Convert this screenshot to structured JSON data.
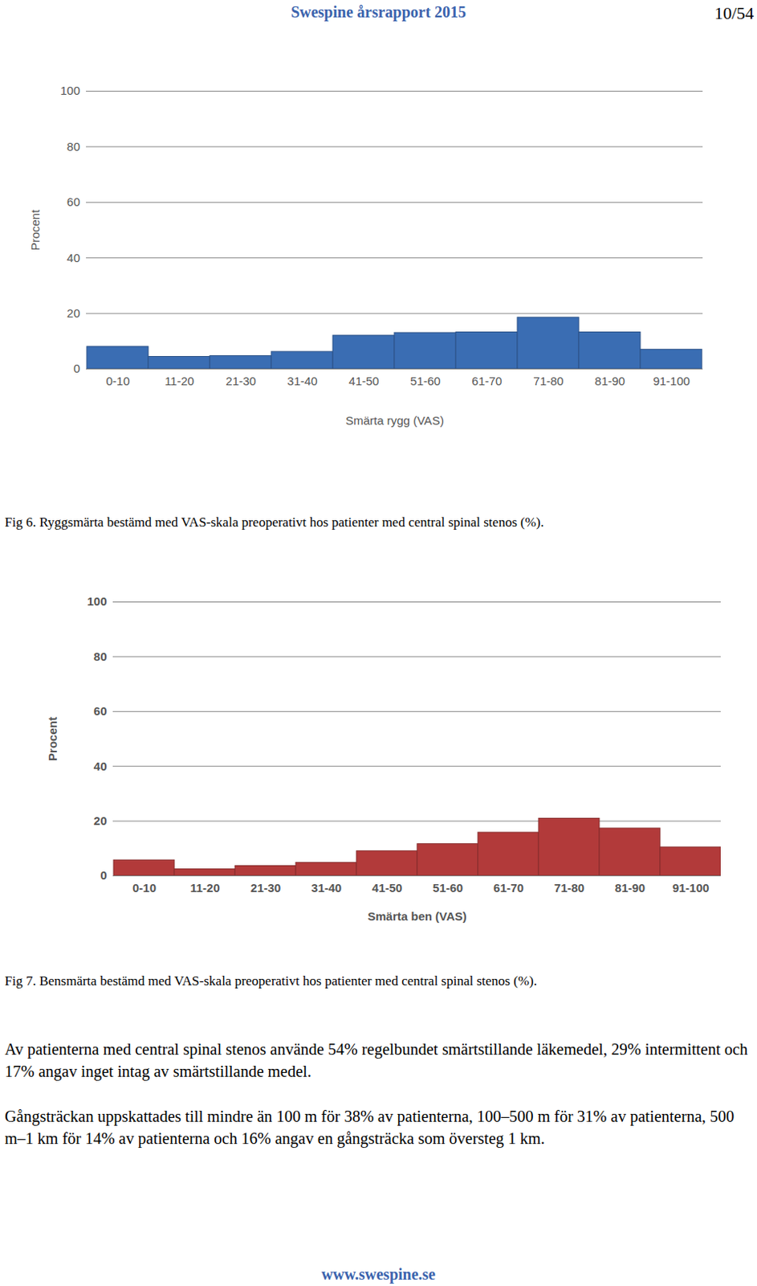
{
  "chart_data": [
    {
      "type": "bar",
      "xlabel": "Smärta rygg (VAS)",
      "ylabel": "Procent",
      "categories": [
        "0-10",
        "11-20",
        "21-30",
        "31-40",
        "41-50",
        "51-60",
        "61-70",
        "71-80",
        "81-90",
        "91-100"
      ],
      "values": [
        8,
        4.4,
        4.7,
        6.2,
        12,
        13,
        13.2,
        18.5,
        13.2,
        7
      ],
      "color": "#3a6db3",
      "ylim": [
        0,
        100
      ],
      "yticks": [
        0,
        20,
        40,
        60,
        80,
        100
      ],
      "grid": true
    },
    {
      "type": "bar",
      "xlabel": "Smärta ben (VAS)",
      "ylabel": "Procent",
      "categories": [
        "0-10",
        "11-20",
        "21-30",
        "31-40",
        "41-50",
        "51-60",
        "61-70",
        "71-80",
        "81-90",
        "91-100"
      ],
      "values": [
        5.7,
        2.4,
        3.6,
        4.8,
        9,
        11.6,
        15.8,
        20.9,
        17.3,
        10.4
      ],
      "color": "#b23a3a",
      "ylim": [
        0,
        100
      ],
      "yticks": [
        0,
        20,
        40,
        60,
        80,
        100
      ],
      "grid": true
    }
  ],
  "page": {
    "header": {
      "title": "Swespine årsrapport 2015",
      "page": "10/54"
    },
    "captions": [
      "Fig 6. Ryggsmärta bestämd med VAS-skala preoperativt hos patienter med central spinal stenos (%).",
      "Fig 7. Bensmärta bestämd med VAS-skala preoperativt hos patienter med central spinal stenos (%)."
    ],
    "paragraphs": [
      "Av patienterna med central spinal stenos använde 54% regelbundet smärtstillande läkemedel, 29% intermittent och 17% angav inget intag av smärtstillande medel.",
      "Gångsträckan uppskattades till mindre än 100 m för 38% av patienterna, 100–500 m för 31% av patienterna, 500 m–1 km för 14% av patienterna och 16% angav en gångsträcka som översteg 1 km."
    ],
    "footer": "www.swespine.se"
  }
}
